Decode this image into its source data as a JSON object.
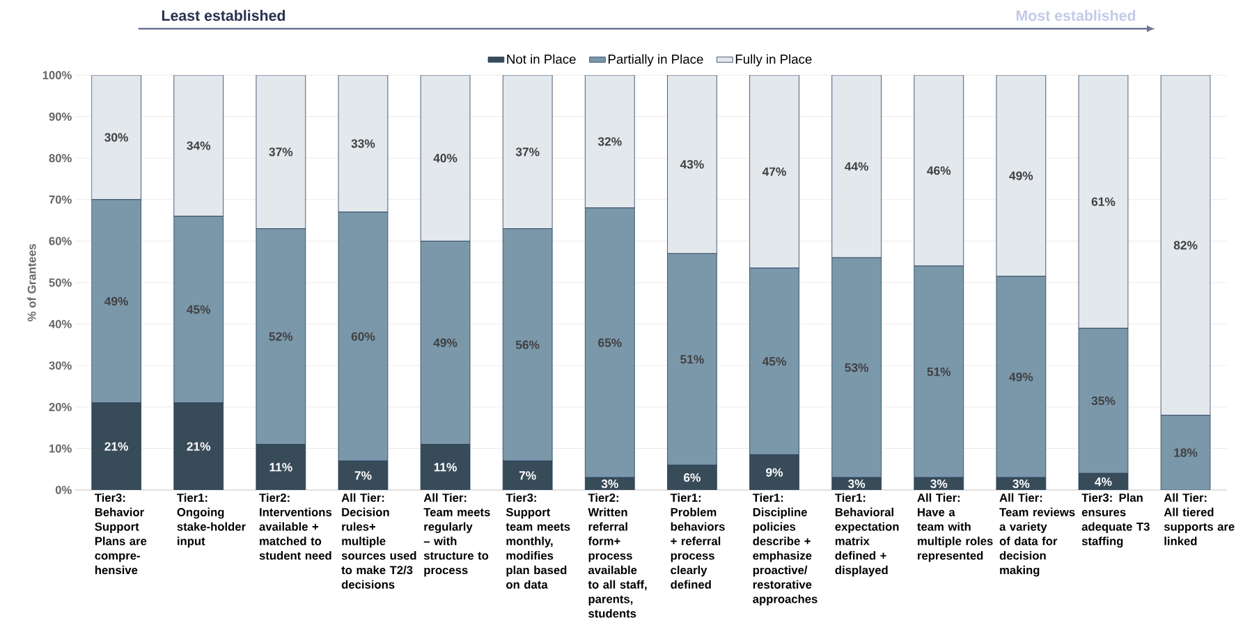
{
  "chart_data": {
    "type": "bar",
    "stacked": true,
    "ylabel": "% of Grantees",
    "annotations": [
      "Least established",
      "Most established"
    ],
    "categories": [
      "Tier3: Behavior Support Plans are compre-hensive",
      "Tier1: Ongoing stake-holder input",
      "Tier2: Interventions available + matched to student need",
      "All Tier: Decision rules+ multiple sources used to make T2/3 decisions",
      "All Tier: Team meets regularly – with structure to process",
      "Tier3: Support team meets monthly, modifies plan based on data",
      "Tier2: Written referral form+ process available to all staff, parents, students",
      "Tier1: Problem behaviors + referral process clearly defined",
      "Tier1: Discipline policies describe + emphasize proactive/ restorative approaches",
      "Tier1: Behavioral expectation matrix defined + displayed",
      "All Tier: Have a team with multiple roles represented",
      "All Tier: Team reviews a variety of data for decision making",
      "Tier3: Plan ensures adequate T3 staffing",
      "All Tier: All tiered supports are linked"
    ],
    "series": [
      {
        "name": "Not in Place",
        "color": "#384b59",
        "values": [
          21,
          21,
          11,
          7,
          11,
          7,
          3,
          6,
          8.5,
          3,
          3,
          3,
          4,
          0
        ],
        "value_labels": [
          "21%",
          "21%",
          "11%",
          "7%",
          "11%",
          "7%",
          "3%",
          "6%",
          "9%",
          "3%",
          "3%",
          "3%",
          "4%",
          null
        ]
      },
      {
        "name": "Partially in Place",
        "color": "#7b98ab",
        "values": [
          49,
          45,
          52,
          60,
          49,
          56,
          65,
          51,
          45,
          53,
          51,
          48.5,
          35,
          18
        ],
        "value_labels": [
          "49%",
          "45%",
          "52%",
          "60%",
          "49%",
          "56%",
          "65%",
          "51%",
          "45%",
          "53%",
          "51%",
          "49%",
          "35%",
          "18%"
        ]
      },
      {
        "name": "Fully in Place",
        "color": "#e3e8ed",
        "values": [
          30,
          34,
          37,
          33,
          40,
          37,
          32,
          43,
          46.5,
          44,
          46,
          48.5,
          61,
          82
        ],
        "value_labels": [
          "30%",
          "34%",
          "37%",
          "33%",
          "40%",
          "37%",
          "32%",
          "43%",
          "47%",
          "44%",
          "46%",
          "49%",
          "61%",
          "82%"
        ]
      }
    ],
    "ylim": [
      0,
      100
    ],
    "yticks": [
      {
        "value": 0,
        "label": "0%"
      },
      {
        "value": 10,
        "label": "10%"
      },
      {
        "value": 20,
        "label": "20%"
      },
      {
        "value": 30,
        "label": "30%"
      },
      {
        "value": 40,
        "label": "40%"
      },
      {
        "value": 50,
        "label": "50%"
      },
      {
        "value": 60,
        "label": "60%"
      },
      {
        "value": 70,
        "label": "70%"
      },
      {
        "value": 80,
        "label": "80%"
      },
      {
        "value": 90,
        "label": "90%"
      },
      {
        "value": 100,
        "label": "100%"
      }
    ],
    "grid": "y",
    "legend": "top"
  }
}
